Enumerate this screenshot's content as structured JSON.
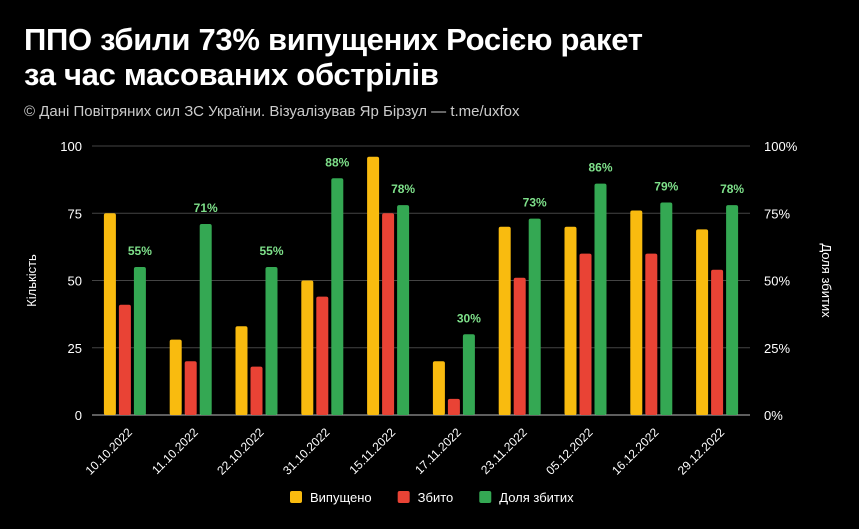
{
  "header": {
    "title_line1": "ППО збили 73% випущених Росією ракет",
    "title_line2": "за час масованих обстрілів",
    "subtitle": "© Дані Повітряних сил ЗС України. Візуалізував Яр Бірзул — t.me/uxfox"
  },
  "chart_data": {
    "type": "bar",
    "title": "ППО збили 73% випущених Росією ракет за час масованих обстрілів",
    "categories": [
      "10.10.2022",
      "11.10.2022",
      "22.10.2022",
      "31.10.2022",
      "15.11.2022",
      "17.11.2022",
      "23.11.2022",
      "05.12.2022",
      "16.12.2022",
      "29.12.2022"
    ],
    "series": [
      {
        "name": "Випущено",
        "axis": "left",
        "color": "#f9bb0f",
        "values": [
          75,
          28,
          33,
          50,
          96,
          20,
          70,
          70,
          76,
          69
        ]
      },
      {
        "name": "Збито",
        "axis": "left",
        "color": "#e94335",
        "values": [
          41,
          20,
          18,
          44,
          75,
          6,
          51,
          60,
          60,
          54
        ]
      },
      {
        "name": "Доля збитих",
        "axis": "right",
        "color": "#34a853",
        "values": [
          55,
          71,
          55,
          88,
          78,
          30,
          73,
          86,
          79,
          78
        ]
      }
    ],
    "data_labels": [
      "55%",
      "71%",
      "55%",
      "88%",
      "78%",
      "30%",
      "73%",
      "86%",
      "79%",
      "78%"
    ],
    "ylabel": "Кількість",
    "y2label": "Доля збитих",
    "ylim": [
      0,
      100
    ],
    "y2lim": [
      0,
      100
    ],
    "yticks": [
      "0",
      "25",
      "50",
      "75",
      "100"
    ],
    "y2ticks": [
      "0%",
      "25%",
      "50%",
      "75%",
      "100%"
    ],
    "grid": true,
    "legend": "bottom",
    "label_color": "#7ee08a"
  }
}
